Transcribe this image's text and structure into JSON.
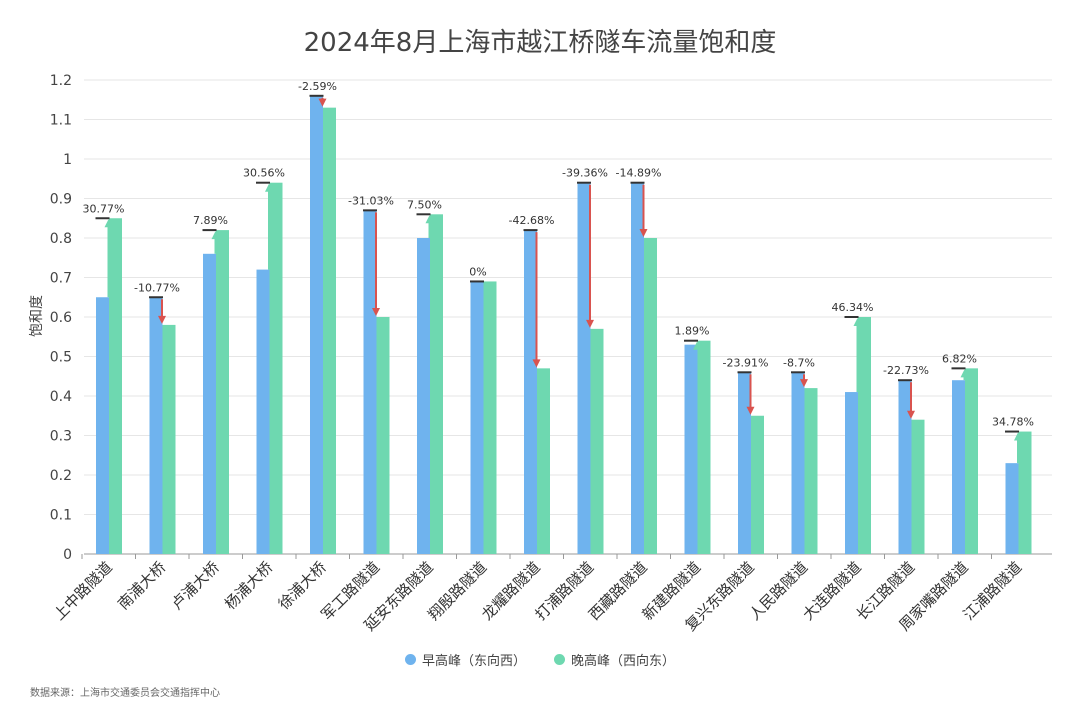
{
  "chart_data": {
    "type": "bar",
    "title": "2024年8月上海市越江桥隧车流量饱和度",
    "ylabel": "饱和度",
    "xlabel": "",
    "ylim": [
      0,
      1.2
    ],
    "yticks": [
      "0",
      "0.1",
      "0.2",
      "0.3",
      "0.4",
      "0.5",
      "0.6",
      "0.7",
      "0.8",
      "0.9",
      "1",
      "1.1",
      "1.2"
    ],
    "grid": true,
    "legend_position": "bottom",
    "categories": [
      "上中路隧道",
      "南浦大桥",
      "卢浦大桥",
      "杨浦大桥",
      "徐浦大桥",
      "军工路隧道",
      "延安东路隧道",
      "翔殷路隧道",
      "龙耀路隧道",
      "打浦路隧道",
      "西藏路隧道",
      "新建路隧道",
      "复兴东路隧道",
      "人民路隧道",
      "大连路隧道",
      "长江路隧道",
      "周家嘴路隧道",
      "江浦路隧道"
    ],
    "series": [
      {
        "name": "早高峰（东向西）",
        "color": "#6fb3ee",
        "values": [
          0.65,
          0.65,
          0.76,
          0.72,
          1.16,
          0.87,
          0.8,
          0.69,
          0.82,
          0.94,
          0.94,
          0.53,
          0.46,
          0.46,
          0.41,
          0.44,
          0.44,
          0.23
        ]
      },
      {
        "name": "晚高峰（西向东）",
        "color": "#6ed8b0",
        "values": [
          0.85,
          0.58,
          0.82,
          0.94,
          1.13,
          0.6,
          0.86,
          0.69,
          0.47,
          0.57,
          0.8,
          0.54,
          0.35,
          0.42,
          0.6,
          0.34,
          0.47,
          0.31
        ]
      }
    ],
    "change_labels": [
      "30.77%",
      "-10.77%",
      "7.89%",
      "30.56%",
      "-2.59%",
      "-31.03%",
      "7.50%",
      "0%",
      "-42.68%",
      "-39.36%",
      "-14.89%",
      "1.89%",
      "-23.91%",
      "-8.7%",
      "46.34%",
      "-22.73%",
      "6.82%",
      "34.78%"
    ],
    "increase_color": "#6ed8b0",
    "decrease_color": "#d9534f"
  },
  "source_text": "数据来源：上海市交通委员会交通指挥中心"
}
